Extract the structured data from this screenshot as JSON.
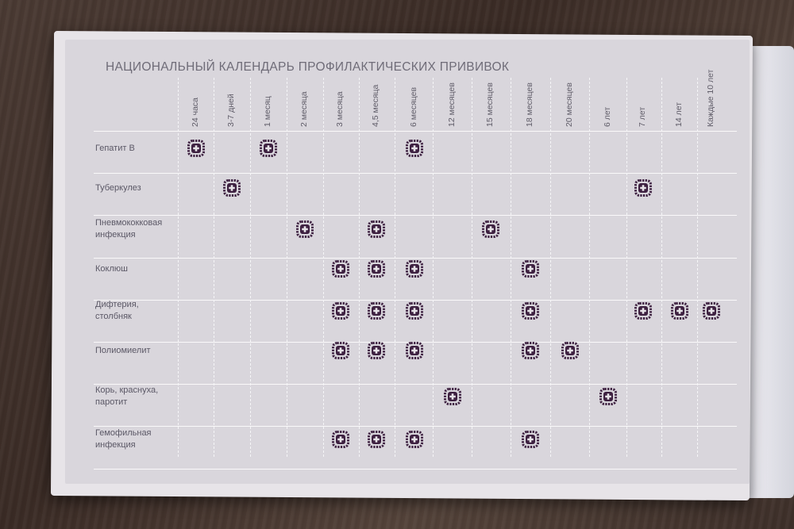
{
  "title": "НАЦИОНАЛЬНЫЙ КАЛЕНДАРЬ ПРОФИЛАКТИЧЕСКИХ ПРИВИВОК",
  "columns": [
    "24 часа",
    "3-7 дней",
    "1 месяц",
    "2 месяца",
    "3 месяца",
    "4,5 месяца",
    "6 месяцев",
    "12 месяцев",
    "15 месяцев",
    "18 месяцев",
    "20 месяцев",
    "6 лет",
    "7 лет",
    "14 лет",
    "Каждые 10 лет"
  ],
  "rows": [
    {
      "label_lines": [
        "Гепатит В"
      ],
      "marks": [
        0,
        2,
        6
      ]
    },
    {
      "label_lines": [
        "Туберкулез"
      ],
      "marks": [
        1,
        12
      ]
    },
    {
      "label_lines": [
        "Пневмококковая",
        "инфекция"
      ],
      "marks": [
        3,
        5,
        8
      ]
    },
    {
      "label_lines": [
        "Коклюш"
      ],
      "marks": [
        4,
        5,
        6,
        9
      ]
    },
    {
      "label_lines": [
        "Дифтерия,",
        "столбняк"
      ],
      "marks": [
        4,
        5,
        6,
        9,
        12,
        13,
        14
      ]
    },
    {
      "label_lines": [
        "Полиомиелит"
      ],
      "marks": [
        4,
        5,
        6,
        9,
        10
      ]
    },
    {
      "label_lines": [
        "Корь, краснуха,",
        "паротит"
      ],
      "marks": [
        7,
        11
      ]
    },
    {
      "label_lines": [
        "Гемофильная",
        "инфекция"
      ],
      "marks": [
        4,
        5,
        6,
        9
      ]
    }
  ],
  "colors": {
    "mark": "#3d2040",
    "text": "#5f5c68"
  },
  "icons": {
    "mark": "vaccination-mark-icon"
  }
}
